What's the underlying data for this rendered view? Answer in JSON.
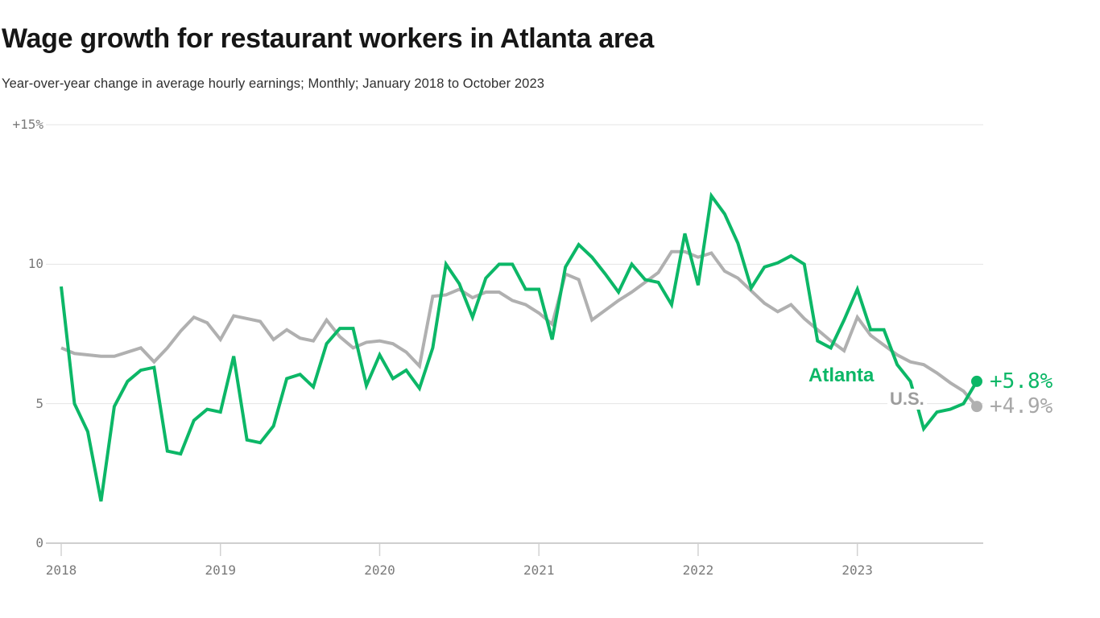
{
  "header": {
    "title": "Wage growth for restaurant workers in Atlanta area",
    "subtitle": "Year-over-year change in average hourly earnings; Monthly; January 2018 to October 2023"
  },
  "chart_data": {
    "type": "line",
    "title": "Wage growth for restaurant workers in Atlanta area",
    "subtitle": "Year-over-year change in average hourly earnings; Monthly; January 2018 to October 2023",
    "xlabel": "",
    "ylabel": "Year-over-year change in average hourly earnings (%)",
    "ylim": [
      0,
      15
    ],
    "grid": "horizontal",
    "legend_position": "inline-end",
    "y_ticks": [
      {
        "label": "+15%",
        "value": 15
      },
      {
        "label": "10",
        "value": 10
      },
      {
        "label": "5",
        "value": 5
      },
      {
        "label": "0",
        "value": 0
      }
    ],
    "x_ticks": [
      {
        "label": "2018",
        "month_index": 0
      },
      {
        "label": "2019",
        "month_index": 12
      },
      {
        "label": "2020",
        "month_index": 24
      },
      {
        "label": "2021",
        "month_index": 36
      },
      {
        "label": "2022",
        "month_index": 48
      },
      {
        "label": "2023",
        "month_index": 60
      }
    ],
    "x_start": "January 2018",
    "x_end": "October 2023",
    "series": [
      {
        "name": "Atlanta",
        "line_color": "#0cb767",
        "text_color": "#0cb767",
        "end_label": "+5.8%",
        "end_value": 5.8,
        "values": [
          9.2,
          5.0,
          4.0,
          1.5,
          4.9,
          5.8,
          6.2,
          6.3,
          3.3,
          3.2,
          4.4,
          4.8,
          4.7,
          6.7,
          3.7,
          3.6,
          4.2,
          5.9,
          6.05,
          5.6,
          7.15,
          7.7,
          7.7,
          5.65,
          6.75,
          5.9,
          6.2,
          5.55,
          7.0,
          10.0,
          9.3,
          8.1,
          9.5,
          10.0,
          10.0,
          9.1,
          9.1,
          7.3,
          9.9,
          10.7,
          10.25,
          9.65,
          9.0,
          10.0,
          9.45,
          9.35,
          8.55,
          11.1,
          9.25,
          12.45,
          11.8,
          10.75,
          9.15,
          9.9,
          10.05,
          10.3,
          10.0,
          7.25,
          7.0,
          8.0,
          9.1,
          7.65,
          7.65,
          6.4,
          5.8,
          4.1,
          4.7,
          4.8,
          5.0,
          5.8
        ]
      },
      {
        "name": "U.S.",
        "line_color": "#b0b0b0",
        "text_color": "#9c9c9c",
        "end_label": "+4.9%",
        "end_value": 4.9,
        "values": [
          7.0,
          6.8,
          6.75,
          6.7,
          6.7,
          6.85,
          7.0,
          6.5,
          7.0,
          7.6,
          8.1,
          7.9,
          7.3,
          8.15,
          8.05,
          7.95,
          7.3,
          7.65,
          7.35,
          7.25,
          8.0,
          7.4,
          7.0,
          7.2,
          7.25,
          7.15,
          6.85,
          6.35,
          8.85,
          8.9,
          9.1,
          8.8,
          9.0,
          9.0,
          8.7,
          8.55,
          8.25,
          7.85,
          9.65,
          9.45,
          8.0,
          8.35,
          8.7,
          9.0,
          9.35,
          9.7,
          10.45,
          10.45,
          10.25,
          10.4,
          9.75,
          9.5,
          9.05,
          8.6,
          8.3,
          8.55,
          8.05,
          7.65,
          7.25,
          6.9,
          8.1,
          7.45,
          7.1,
          6.75,
          6.5,
          6.4,
          6.1,
          5.75,
          5.45,
          4.9
        ]
      }
    ],
    "colors": {
      "gridline": "#e5e5e5",
      "zero_line": "#cfcfcf",
      "tick": "#d2d2d2",
      "axis_text": "#7a7a7a"
    }
  }
}
